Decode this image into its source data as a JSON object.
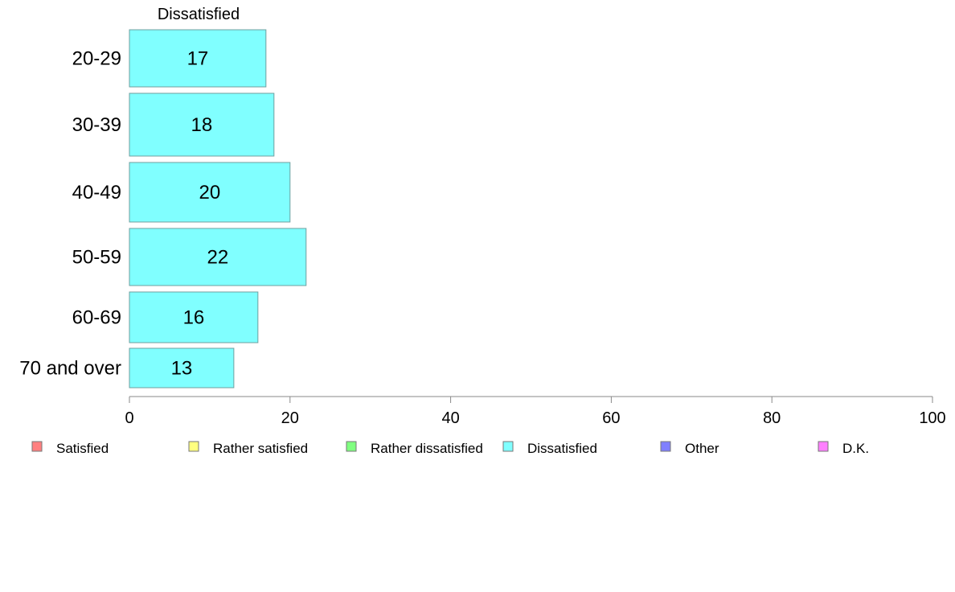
{
  "chart_data": {
    "type": "bar",
    "orientation": "horizontal",
    "stacked": true,
    "header": "Dissatisfied",
    "categories": [
      "20-29",
      "30-39",
      "40-49",
      "50-59",
      "60-69",
      "70 and over"
    ],
    "series": [
      {
        "name": "Dissatisfied",
        "color": "#80ffff",
        "values": [
          17,
          18,
          20,
          22,
          16,
          13
        ]
      }
    ],
    "xlim": [
      0,
      100
    ],
    "xticks": [
      0,
      20,
      40,
      60,
      80,
      100
    ],
    "grid": false,
    "legend": {
      "position": "bottom",
      "items": [
        {
          "label": "Satisfied",
          "color": "#ff8080"
        },
        {
          "label": "Rather satisfied",
          "color": "#ffff80"
        },
        {
          "label": "Rather dissatisfied",
          "color": "#80ff80"
        },
        {
          "label": "Dissatisfied",
          "color": "#80ffff"
        },
        {
          "label": "Other",
          "color": "#8080ff"
        },
        {
          "label": "D.K.",
          "color": "#ff80ff"
        }
      ]
    }
  }
}
